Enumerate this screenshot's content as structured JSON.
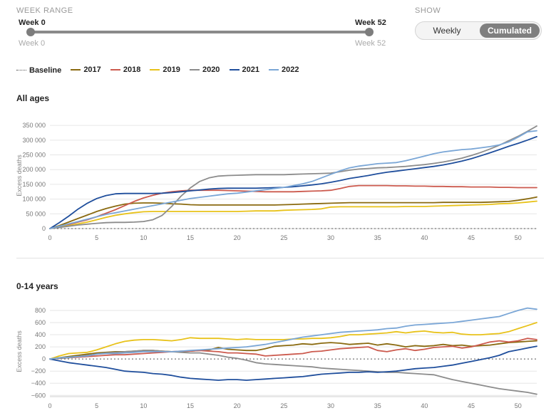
{
  "controls": {
    "week_range_label": "WEEK RANGE",
    "range_start_top": "Week 0",
    "range_end_top": "Week 52",
    "range_start_bottom": "Week 0",
    "range_end_bottom": "Week 52",
    "range_min": 0,
    "range_max": 52,
    "show_label": "SHOW",
    "toggle_weekly": "Weekly",
    "toggle_cumulated": "Cumulated",
    "selected": "Cumulated"
  },
  "legend": [
    {
      "label": "Baseline",
      "color": "#555555",
      "style": "dotted"
    },
    {
      "label": "2017",
      "color": "#8a6a10",
      "style": "solid"
    },
    {
      "label": "2018",
      "color": "#cc5a4e",
      "style": "solid"
    },
    {
      "label": "2019",
      "color": "#e8c21a",
      "style": "solid"
    },
    {
      "label": "2020",
      "color": "#8c8c8c",
      "style": "solid"
    },
    {
      "label": "2021",
      "color": "#1f4e9c",
      "style": "solid"
    },
    {
      "label": "2022",
      "color": "#7aa6d6",
      "style": "solid"
    }
  ],
  "chart_data": [
    {
      "type": "line",
      "title": "All ages",
      "ylabel": "Excess deaths",
      "xlabel": "",
      "xlim": [
        0,
        52
      ],
      "ylim": [
        0,
        360000
      ],
      "xticks": [
        0,
        5,
        10,
        15,
        20,
        25,
        30,
        35,
        40,
        45,
        50
      ],
      "yticks": [
        0,
        50000,
        100000,
        150000,
        200000,
        250000,
        300000,
        350000
      ],
      "ytick_labels": [
        "0",
        "50 000",
        "100 000",
        "150 000",
        "200 000",
        "250 000",
        "300 000",
        "350 000"
      ],
      "x": [
        0,
        1,
        2,
        3,
        4,
        5,
        6,
        7,
        8,
        9,
        10,
        11,
        12,
        13,
        14,
        15,
        16,
        17,
        18,
        19,
        20,
        21,
        22,
        23,
        24,
        25,
        26,
        27,
        28,
        29,
        30,
        31,
        32,
        33,
        34,
        35,
        36,
        37,
        38,
        39,
        40,
        41,
        42,
        43,
        44,
        45,
        46,
        47,
        48,
        49,
        50,
        51,
        52
      ],
      "baseline": 0,
      "series": [
        {
          "name": "2017",
          "color": "#8a6a10",
          "values": [
            0,
            10000,
            22000,
            34000,
            46000,
            58000,
            68000,
            76000,
            83000,
            86000,
            87000,
            87000,
            86000,
            84000,
            83000,
            81000,
            80000,
            80000,
            80000,
            80000,
            80000,
            80000,
            80000,
            80000,
            80000,
            81000,
            82000,
            83000,
            84000,
            85000,
            86000,
            87000,
            88000,
            88000,
            88000,
            88000,
            88000,
            88000,
            88000,
            88000,
            88000,
            88000,
            89000,
            89000,
            89000,
            89000,
            89000,
            90000,
            91000,
            92000,
            96000,
            101000,
            107000
          ]
        },
        {
          "name": "2018",
          "color": "#cc5a4e",
          "values": [
            0,
            7000,
            14000,
            22000,
            30000,
            40000,
            52000,
            64000,
            78000,
            92000,
            104000,
            113000,
            120000,
            125000,
            128000,
            130000,
            130000,
            130000,
            130000,
            129000,
            128000,
            127000,
            126000,
            125000,
            125000,
            125000,
            125000,
            126000,
            127000,
            128000,
            130000,
            136000,
            143000,
            146000,
            146000,
            146000,
            146000,
            145000,
            145000,
            144000,
            144000,
            143000,
            143000,
            142000,
            142000,
            141000,
            141000,
            141000,
            140000,
            140000,
            139000,
            139000,
            139000
          ]
        },
        {
          "name": "2019",
          "color": "#e8c21a",
          "values": [
            0,
            5000,
            10000,
            16000,
            22000,
            30000,
            38000,
            45000,
            50000,
            54000,
            57000,
            58000,
            58000,
            58000,
            58000,
            58000,
            58000,
            58000,
            58000,
            58000,
            58000,
            59000,
            60000,
            60000,
            60000,
            62000,
            63000,
            64000,
            65000,
            67000,
            73000,
            74000,
            74000,
            74000,
            74000,
            74000,
            74000,
            74000,
            75000,
            75000,
            75000,
            76000,
            77000,
            78000,
            79000,
            80000,
            81000,
            82000,
            84000,
            85000,
            87000,
            90000,
            93000
          ]
        },
        {
          "name": "2020",
          "color": "#8c8c8c",
          "values": [
            0,
            4000,
            8000,
            12000,
            15000,
            18000,
            20000,
            21000,
            21000,
            22000,
            24000,
            30000,
            45000,
            75000,
            110000,
            138000,
            160000,
            172000,
            178000,
            180000,
            181000,
            182000,
            183000,
            183000,
            183000,
            183000,
            184000,
            185000,
            186000,
            187000,
            188000,
            193000,
            198000,
            202000,
            204000,
            206000,
            207000,
            209000,
            211000,
            214000,
            217000,
            221000,
            226000,
            232000,
            239000,
            248000,
            258000,
            270000,
            283000,
            298000,
            313000,
            330000,
            348000
          ]
        },
        {
          "name": "2021",
          "color": "#1f4e9c",
          "values": [
            0,
            20000,
            42000,
            66000,
            86000,
            102000,
            112000,
            118000,
            119000,
            119000,
            119000,
            119000,
            120000,
            122000,
            125000,
            128000,
            131000,
            134000,
            136000,
            137000,
            137000,
            137000,
            137000,
            138000,
            139000,
            140000,
            142000,
            145000,
            148000,
            152000,
            157000,
            163000,
            170000,
            175000,
            180000,
            186000,
            191000,
            195000,
            199000,
            203000,
            207000,
            211000,
            216000,
            222000,
            229000,
            237000,
            247000,
            257000,
            268000,
            279000,
            289000,
            300000,
            312000
          ]
        },
        {
          "name": "2022",
          "color": "#7aa6d6",
          "values": [
            0,
            8000,
            16000,
            24000,
            32000,
            40000,
            48000,
            54000,
            60000,
            66000,
            72000,
            78000,
            84000,
            90000,
            96000,
            102000,
            106000,
            110000,
            114000,
            118000,
            120000,
            124000,
            128000,
            132000,
            136000,
            140000,
            146000,
            152000,
            160000,
            172000,
            184000,
            196000,
            206000,
            212000,
            216000,
            220000,
            222000,
            224000,
            230000,
            238000,
            246000,
            254000,
            260000,
            264000,
            268000,
            270000,
            274000,
            278000,
            284000,
            294000,
            310000,
            328000,
            332000
          ]
        }
      ]
    },
    {
      "type": "line",
      "title": "0-14 years",
      "ylabel": "Excess deaths",
      "xlabel": "",
      "xlim": [
        0,
        52
      ],
      "ylim": [
        -620,
        870
      ],
      "xticks": [
        0,
        5,
        10,
        15,
        20,
        25,
        30,
        35,
        40,
        45,
        50
      ],
      "yticks": [
        -600,
        -400,
        -200,
        0,
        200,
        400,
        600,
        800
      ],
      "ytick_labels": [
        "−600",
        "−400",
        "−200",
        "0",
        "200",
        "400",
        "600",
        "800"
      ],
      "x": [
        0,
        1,
        2,
        3,
        4,
        5,
        6,
        7,
        8,
        9,
        10,
        11,
        12,
        13,
        14,
        15,
        16,
        17,
        18,
        19,
        20,
        21,
        22,
        23,
        24,
        25,
        26,
        27,
        28,
        29,
        30,
        31,
        32,
        33,
        34,
        35,
        36,
        37,
        38,
        39,
        40,
        41,
        42,
        43,
        44,
        45,
        46,
        47,
        48,
        49,
        50,
        51,
        52
      ],
      "baseline": 0,
      "series": [
        {
          "name": "2017",
          "color": "#8a6a10",
          "values": [
            0,
            20,
            40,
            60,
            80,
            100,
            110,
            120,
            120,
            130,
            140,
            140,
            130,
            120,
            120,
            130,
            140,
            150,
            190,
            160,
            150,
            140,
            140,
            170,
            210,
            220,
            230,
            250,
            240,
            260,
            270,
            260,
            240,
            250,
            260,
            230,
            250,
            230,
            200,
            220,
            210,
            220,
            240,
            220,
            230,
            210,
            220,
            230,
            250,
            270,
            280,
            290,
            300
          ]
        },
        {
          "name": "2018",
          "color": "#cc5a4e",
          "values": [
            0,
            10,
            20,
            30,
            40,
            50,
            60,
            70,
            70,
            80,
            90,
            100,
            110,
            120,
            130,
            130,
            140,
            130,
            120,
            100,
            100,
            90,
            80,
            50,
            60,
            70,
            80,
            90,
            120,
            130,
            150,
            170,
            180,
            190,
            200,
            140,
            120,
            150,
            170,
            140,
            160,
            190,
            200,
            210,
            180,
            200,
            240,
            280,
            300,
            280,
            300,
            340,
            320
          ]
        },
        {
          "name": "2019",
          "color": "#e8c21a",
          "values": [
            0,
            50,
            90,
            100,
            110,
            150,
            200,
            250,
            290,
            310,
            320,
            320,
            310,
            300,
            320,
            350,
            340,
            340,
            340,
            330,
            320,
            330,
            320,
            320,
            320,
            320,
            330,
            330,
            340,
            340,
            350,
            370,
            400,
            400,
            410,
            420,
            430,
            450,
            430,
            450,
            460,
            440,
            430,
            440,
            410,
            400,
            400,
            410,
            420,
            450,
            500,
            550,
            600
          ]
        },
        {
          "name": "2020",
          "color": "#8c8c8c",
          "values": [
            0,
            10,
            20,
            40,
            60,
            80,
            100,
            110,
            120,
            130,
            140,
            140,
            130,
            120,
            110,
            100,
            100,
            80,
            60,
            30,
            10,
            -20,
            -60,
            -80,
            -90,
            -100,
            -110,
            -120,
            -130,
            -150,
            -160,
            -170,
            -180,
            -190,
            -200,
            -210,
            -220,
            -220,
            -230,
            -240,
            -250,
            -260,
            -300,
            -340,
            -370,
            -400,
            -430,
            -460,
            -490,
            -510,
            -530,
            -550,
            -580
          ]
        },
        {
          "name": "2021",
          "color": "#1f4e9c",
          "values": [
            0,
            -30,
            -60,
            -80,
            -100,
            -120,
            -140,
            -170,
            -200,
            -210,
            -220,
            -240,
            -250,
            -270,
            -300,
            -320,
            -330,
            -340,
            -350,
            -340,
            -340,
            -350,
            -340,
            -330,
            -320,
            -310,
            -300,
            -290,
            -270,
            -250,
            -240,
            -230,
            -220,
            -220,
            -210,
            -220,
            -210,
            -200,
            -180,
            -160,
            -150,
            -140,
            -120,
            -100,
            -70,
            -40,
            -10,
            20,
            60,
            120,
            150,
            180,
            210
          ]
        },
        {
          "name": "2022",
          "color": "#7aa6d6",
          "values": [
            0,
            20,
            30,
            40,
            50,
            80,
            90,
            90,
            100,
            110,
            120,
            120,
            120,
            120,
            130,
            140,
            150,
            160,
            170,
            180,
            190,
            200,
            220,
            240,
            270,
            300,
            330,
            360,
            380,
            400,
            420,
            440,
            450,
            460,
            470,
            480,
            500,
            510,
            540,
            560,
            570,
            580,
            590,
            600,
            620,
            640,
            660,
            680,
            700,
            750,
            800,
            840,
            820
          ]
        }
      ]
    }
  ]
}
